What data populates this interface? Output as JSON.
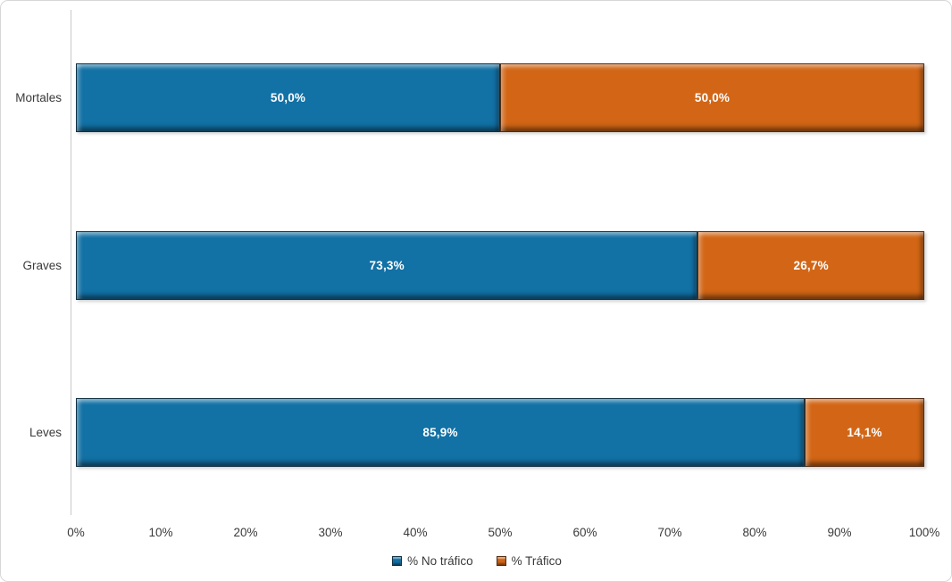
{
  "chart_data": {
    "type": "bar",
    "orientation": "horizontal",
    "stacked": true,
    "title": "",
    "categories": [
      "Mortales",
      "Graves",
      "Leves"
    ],
    "series": [
      {
        "name": "% No tráfico",
        "color": "#1271a5",
        "values": [
          50.0,
          73.3,
          85.9
        ],
        "labels": [
          "50,0%",
          "73,3%",
          "85,9%"
        ]
      },
      {
        "name": "% Tráfico",
        "color": "#d26616",
        "values": [
          50.0,
          26.7,
          14.1
        ],
        "labels": [
          "50,0%",
          "26,7%",
          "14,1%"
        ]
      }
    ],
    "x_axis": {
      "min": 0,
      "max": 100,
      "tick_labels": [
        "0%",
        "10%",
        "20%",
        "30%",
        "40%",
        "50%",
        "60%",
        "70%",
        "80%",
        "90%",
        "100%"
      ]
    },
    "legend": {
      "position": "bottom",
      "entries": [
        "% No tráfico",
        "% Tráfico"
      ]
    },
    "gridlines": false
  }
}
